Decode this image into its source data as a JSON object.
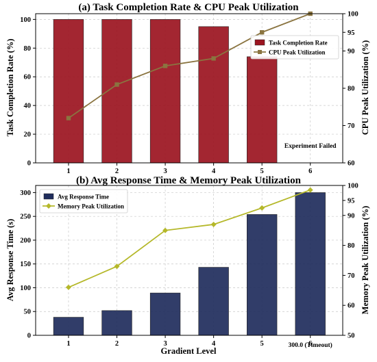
{
  "chart_data": [
    {
      "type": "bar",
      "title": "(a) Task Completion Rate & CPU Peak Utilization",
      "xlabel": "",
      "categories": [
        "1",
        "2",
        "3",
        "4",
        "5",
        "6"
      ],
      "ylabel": "Task Completion Rate (%)",
      "y2label": "CPU Peak Utilization (%)",
      "ylim": [
        0,
        104
      ],
      "y2lim": [
        60,
        100
      ],
      "yticks": [
        "0",
        "20",
        "40",
        "60",
        "80",
        "100"
      ],
      "y2ticks": [
        "60",
        "70",
        "80",
        "90",
        "95",
        "100"
      ],
      "grid": true,
      "legend_position": "upper-right",
      "bar_color": "#9b1420",
      "line_color": "#8a7440",
      "series": [
        {
          "name": "Task Completion Rate",
          "kind": "bar",
          "axis": "left",
          "values": [
            100,
            100,
            100,
            95,
            74,
            null
          ]
        },
        {
          "name": "CPU Peak Utilization",
          "kind": "line",
          "axis": "right",
          "values": [
            72,
            81,
            86,
            88,
            95,
            100
          ]
        }
      ],
      "annotations": [
        {
          "text": "Experiment Failed",
          "category": "6"
        }
      ]
    },
    {
      "type": "bar",
      "title": "(b) Avg Response Time & Memory Peak Utilization",
      "xlabel": "Gradient Level",
      "categories": [
        "1",
        "2",
        "3",
        "4",
        "5",
        "6"
      ],
      "ylabel": "Avg Response Time (s)",
      "y2label": "Memory Peak Utilization (%)",
      "ylim": [
        0,
        315
      ],
      "y2lim": [
        50,
        100
      ],
      "yticks": [
        "0",
        "50",
        "100",
        "150",
        "200",
        "250",
        "300"
      ],
      "y2ticks": [
        "50",
        "60",
        "70",
        "80",
        "90",
        "95",
        "100"
      ],
      "grid": true,
      "legend_position": "upper-left",
      "bar_color": "#1f2d5c",
      "line_color": "#b5b82a",
      "series": [
        {
          "name": "Avg Response Time",
          "kind": "bar",
          "axis": "left",
          "values": [
            38,
            52,
            89,
            143,
            254,
            300
          ]
        },
        {
          "name": "Memory Peak Utilization",
          "kind": "line",
          "axis": "right",
          "values": [
            66,
            73,
            85,
            87,
            92.5,
            98.5
          ]
        }
      ],
      "annotations": [
        {
          "text": "300.0 (Timeout)",
          "category": "6"
        }
      ]
    }
  ]
}
